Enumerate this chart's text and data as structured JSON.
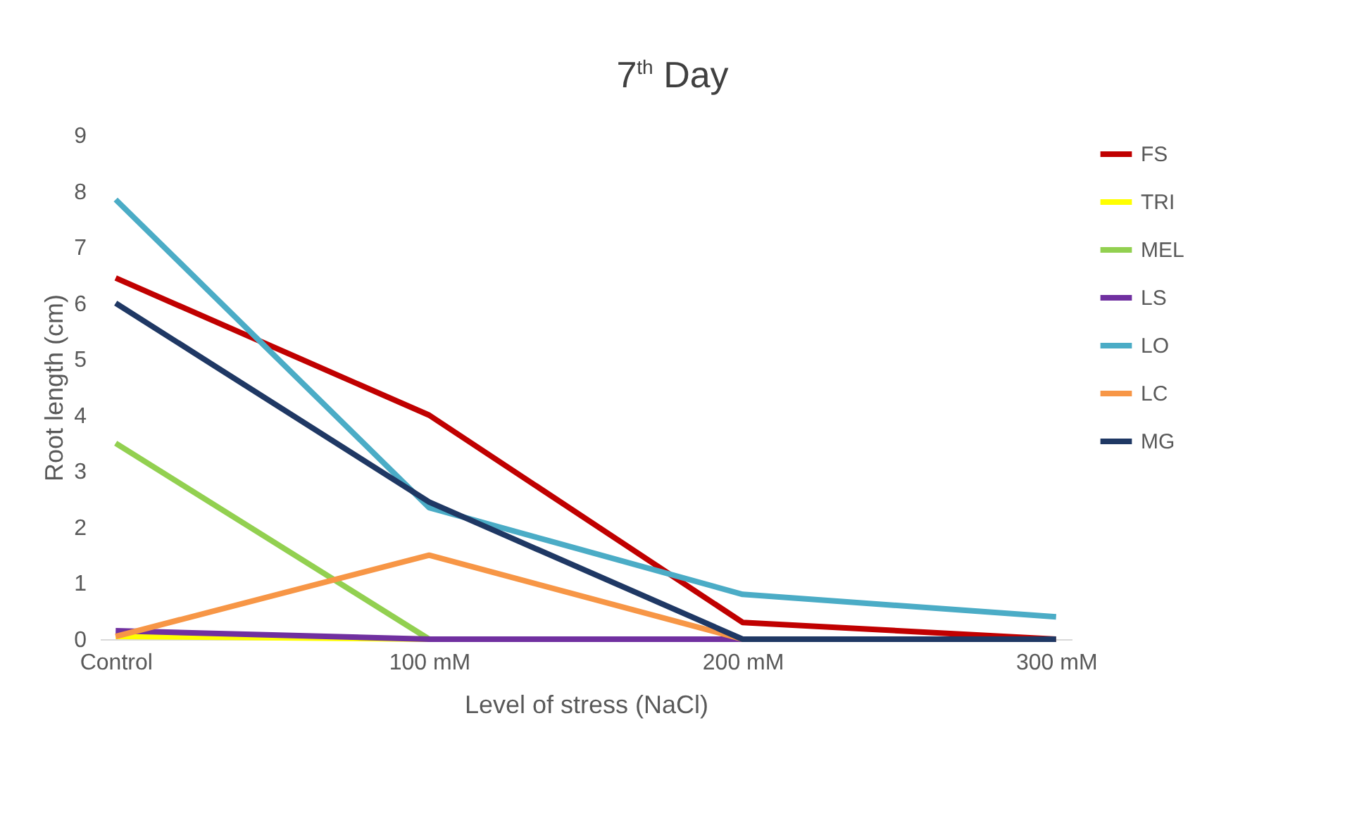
{
  "chart_data": {
    "type": "line",
    "title": "7$^{th}$ Day",
    "xlabel": "Level of stress (NaCl)",
    "ylabel": "Root length (cm)",
    "categories": [
      "Control",
      "100 mM",
      "200 mM",
      "300 mM"
    ],
    "ylim": [
      0,
      9
    ],
    "yticks": [
      0,
      1,
      2,
      3,
      4,
      5,
      6,
      7,
      8,
      9
    ],
    "grid": false,
    "legend": "right",
    "marker": "none",
    "line_style": "solid",
    "series": [
      {
        "name": "FS",
        "color": "#c00000",
        "values": [
          6.45,
          4.0,
          0.3,
          0
        ]
      },
      {
        "name": "TRI",
        "color": "#ffff00",
        "values": [
          0.05,
          0,
          null,
          null
        ]
      },
      {
        "name": "MEL",
        "color": "#92d050",
        "values": [
          3.5,
          0,
          null,
          null
        ]
      },
      {
        "name": "LS",
        "color": "#7030a0",
        "values": [
          0.15,
          0,
          0,
          0
        ]
      },
      {
        "name": "LO",
        "color": "#4bacc6",
        "values": [
          7.85,
          2.35,
          0.8,
          0.4
        ]
      },
      {
        "name": "LC",
        "color": "#f79646",
        "values": [
          0.05,
          1.5,
          0,
          0
        ]
      },
      {
        "name": "MG",
        "color": "#1f3864",
        "values": [
          6.0,
          2.45,
          0,
          0
        ]
      }
    ]
  }
}
